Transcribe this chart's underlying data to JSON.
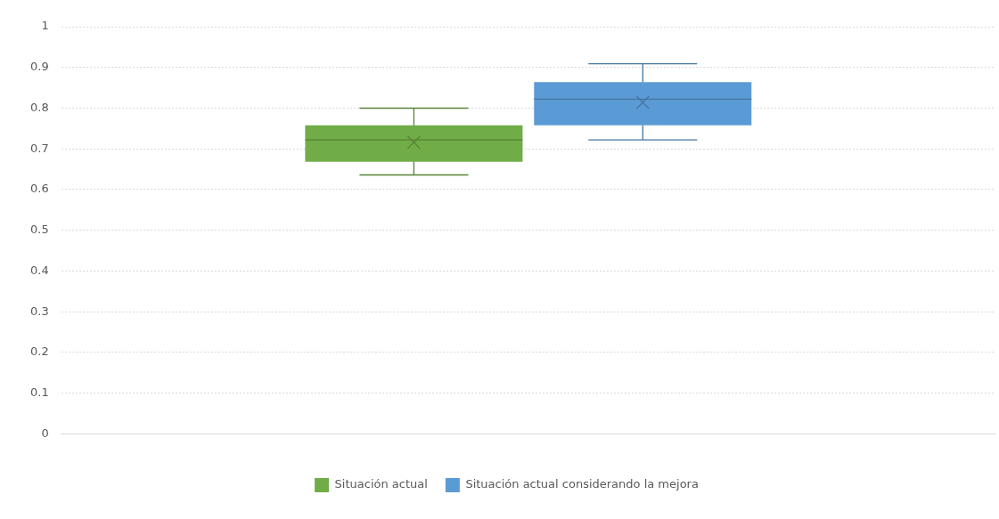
{
  "chart_data": {
    "type": "box",
    "categories": [
      null
    ],
    "series": [
      {
        "name": "Situación actual",
        "color": "#70ad47",
        "boxes": [
          {
            "low": 0.636,
            "q1": 0.668,
            "median": 0.722,
            "q3": 0.758,
            "high": 0.8,
            "mean": 0.716
          }
        ]
      },
      {
        "name": "Situación actual considerando la mejora",
        "color": "#5b9bd5",
        "boxes": [
          {
            "low": 0.722,
            "q1": 0.758,
            "median": 0.822,
            "q3": 0.864,
            "high": 0.909,
            "mean": 0.814
          }
        ]
      }
    ],
    "ylim": [
      0,
      1
    ],
    "yticks": [
      0,
      0.1,
      0.2,
      0.3,
      0.4,
      0.5,
      0.6,
      0.7,
      0.8,
      0.9,
      1
    ],
    "grid": "y",
    "legend": "bottom"
  }
}
